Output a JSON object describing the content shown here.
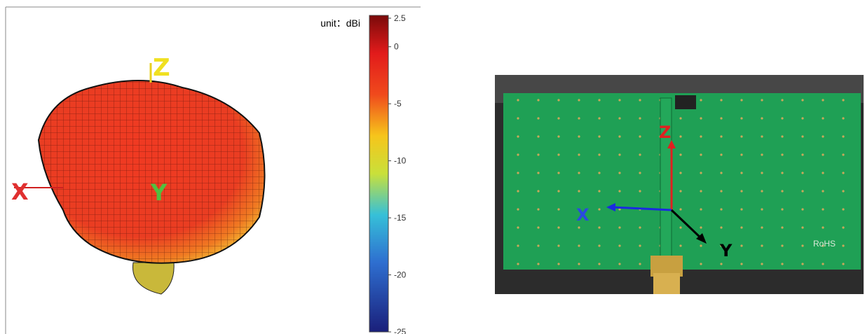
{
  "radiation_pattern": {
    "axis_labels": {
      "x": "X",
      "y": "Y",
      "z": "Z"
    }
  },
  "colorbar": {
    "unit_label": "unit：dBi",
    "lim": [
      -25,
      2.5
    ],
    "ticks": [
      2.5,
      0,
      -5,
      -10,
      -15,
      -20,
      -25
    ]
  },
  "photo": {
    "axis_labels": {
      "x": "X",
      "y": "Y",
      "z": "Z"
    },
    "board_text": "RoHS"
  }
}
